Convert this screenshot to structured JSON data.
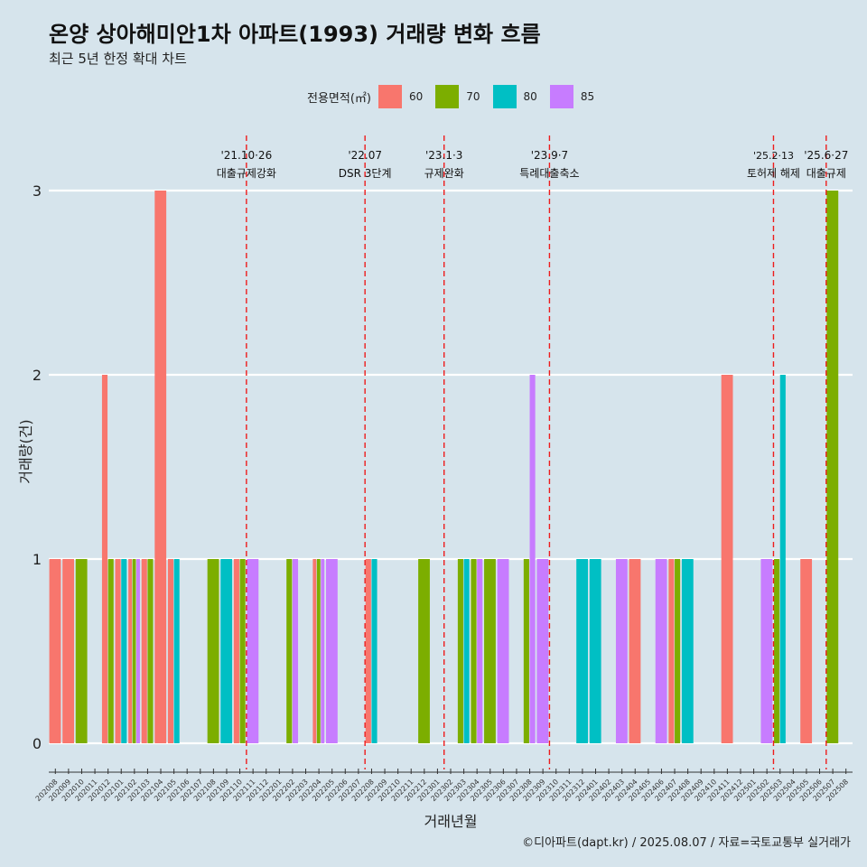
{
  "title": "온양 상아해미안1차 아파트(1993) 거래량 변화 흐름",
  "subtitle": "최근 5년 한정 확대 차트",
  "caption": "©디아파트(dapt.kr) / 2025.08.07 / 자료=국토교통부 실거래가",
  "legend": {
    "title": "전용면적(㎡)",
    "items": [
      {
        "label": "60",
        "color": "#F8766D"
      },
      {
        "label": "70",
        "color": "#7CAE00"
      },
      {
        "label": "80",
        "color": "#00BFC4"
      },
      {
        "label": "85",
        "color": "#C77CFF"
      }
    ]
  },
  "chart_data": {
    "type": "bar",
    "xlabel": "거래년월",
    "ylabel": "거래량(건)",
    "ylim": [
      0,
      3
    ],
    "yticks": [
      0,
      1,
      2,
      3
    ],
    "grid": true,
    "legend_position": "top",
    "categories": [
      "202008",
      "202009",
      "202010",
      "202011",
      "202012",
      "202101",
      "202102",
      "202103",
      "202104",
      "202105",
      "202106",
      "202107",
      "202108",
      "202109",
      "202110",
      "202111",
      "202112",
      "202201",
      "202202",
      "202203",
      "202204",
      "202205",
      "202206",
      "202207",
      "202208",
      "202209",
      "202210",
      "202211",
      "202212",
      "202301",
      "202302",
      "202303",
      "202304",
      "202305",
      "202306",
      "202307",
      "202308",
      "202309",
      "202310",
      "202311",
      "202312",
      "202401",
      "202402",
      "202403",
      "202404",
      "202405",
      "202406",
      "202407",
      "202408",
      "202409",
      "202410",
      "202411",
      "202412",
      "202501",
      "202502",
      "202503",
      "202504",
      "202505",
      "202506",
      "202507",
      "202508"
    ],
    "series": [
      {
        "name": "60",
        "color": "#F8766D",
        "values": [
          1,
          1,
          0,
          0,
          2,
          1,
          1,
          1,
          3,
          1,
          0,
          0,
          0,
          0,
          1,
          0,
          0,
          0,
          0,
          0,
          1,
          0,
          0,
          0,
          1,
          0,
          0,
          0,
          0,
          0,
          0,
          0,
          0,
          0,
          0,
          0,
          0,
          0,
          0,
          0,
          0,
          0,
          0,
          0,
          1,
          0,
          0,
          1,
          0,
          0,
          0,
          2,
          0,
          0,
          0,
          0,
          0,
          1,
          0,
          0,
          0
        ]
      },
      {
        "name": "70",
        "color": "#7CAE00",
        "values": [
          0,
          0,
          1,
          0,
          1,
          0,
          1,
          1,
          0,
          0,
          0,
          0,
          1,
          0,
          1,
          0,
          0,
          0,
          1,
          0,
          1,
          0,
          0,
          0,
          0,
          0,
          0,
          0,
          1,
          0,
          0,
          1,
          1,
          1,
          0,
          0,
          1,
          0,
          0,
          0,
          0,
          0,
          0,
          0,
          0,
          0,
          0,
          1,
          0,
          0,
          0,
          0,
          0,
          0,
          0,
          1,
          0,
          0,
          0,
          3,
          0
        ]
      },
      {
        "name": "80",
        "color": "#00BFC4",
        "values": [
          0,
          0,
          0,
          0,
          0,
          1,
          0,
          0,
          0,
          1,
          0,
          0,
          0,
          1,
          0,
          0,
          0,
          0,
          0,
          0,
          0,
          0,
          0,
          0,
          1,
          0,
          0,
          0,
          0,
          0,
          0,
          1,
          0,
          0,
          0,
          0,
          0,
          0,
          0,
          0,
          1,
          1,
          0,
          0,
          0,
          0,
          0,
          0,
          1,
          0,
          0,
          0,
          0,
          0,
          0,
          2,
          0,
          0,
          0,
          0,
          0
        ]
      },
      {
        "name": "85",
        "color": "#C77CFF",
        "values": [
          0,
          0,
          0,
          0,
          0,
          0,
          1,
          0,
          0,
          0,
          0,
          0,
          0,
          0,
          0,
          1,
          0,
          0,
          1,
          0,
          1,
          1,
          0,
          0,
          0,
          0,
          0,
          0,
          0,
          0,
          0,
          0,
          1,
          0,
          1,
          0,
          2,
          1,
          0,
          0,
          0,
          0,
          0,
          1,
          0,
          0,
          1,
          0,
          0,
          0,
          0,
          0,
          0,
          0,
          1,
          0,
          0,
          0,
          0,
          0,
          0
        ]
      }
    ],
    "annotations": [
      {
        "x": "202110",
        "date": "'21.10·26",
        "label": "대출규제강화"
      },
      {
        "x": "202207",
        "date": "'22.07",
        "label": "DSR 3단계"
      },
      {
        "x": "202301",
        "date": "'23.1·3",
        "label": "규제완화"
      },
      {
        "x": "202309",
        "date": "'23.9·7",
        "label": "특례대출축소"
      },
      {
        "x": "202502",
        "date": "'25.2·13",
        "label": "토허제 해제"
      },
      {
        "x": "202506",
        "date": "'25.6·27",
        "label": "대출규제"
      }
    ]
  }
}
